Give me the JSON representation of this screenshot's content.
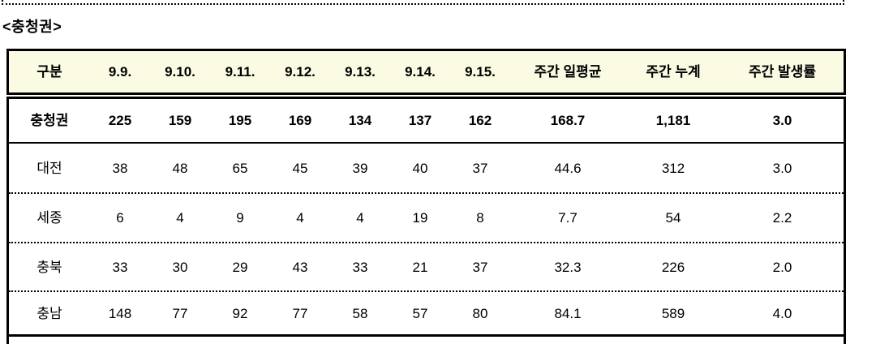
{
  "page": {
    "title": "<충청권>"
  },
  "colors": {
    "header_bg": "#fbfae2",
    "border": "#000000"
  },
  "table": {
    "columns": [
      "구분",
      "9.9.",
      "9.10.",
      "9.11.",
      "9.12.",
      "9.13.",
      "9.14.",
      "9.15.",
      "주간 일평균",
      "주간 누계",
      "주간 발생률"
    ],
    "rows": [
      {
        "label": "충청권",
        "emphasis": true,
        "values": [
          "225",
          "159",
          "195",
          "169",
          "134",
          "137",
          "162",
          "168.7",
          "1,181",
          "3.0"
        ]
      },
      {
        "label": "대전",
        "emphasis": false,
        "values": [
          "38",
          "48",
          "65",
          "45",
          "39",
          "40",
          "37",
          "44.6",
          "312",
          "3.0"
        ]
      },
      {
        "label": "세종",
        "emphasis": false,
        "values": [
          "6",
          "4",
          "9",
          "4",
          "4",
          "19",
          "8",
          "7.7",
          "54",
          "2.2"
        ]
      },
      {
        "label": "충북",
        "emphasis": false,
        "values": [
          "33",
          "30",
          "29",
          "43",
          "33",
          "21",
          "37",
          "32.3",
          "226",
          "2.0"
        ]
      },
      {
        "label": "충남",
        "emphasis": false,
        "values": [
          "148",
          "77",
          "92",
          "77",
          "58",
          "57",
          "80",
          "84.1",
          "589",
          "4.0"
        ]
      }
    ]
  }
}
